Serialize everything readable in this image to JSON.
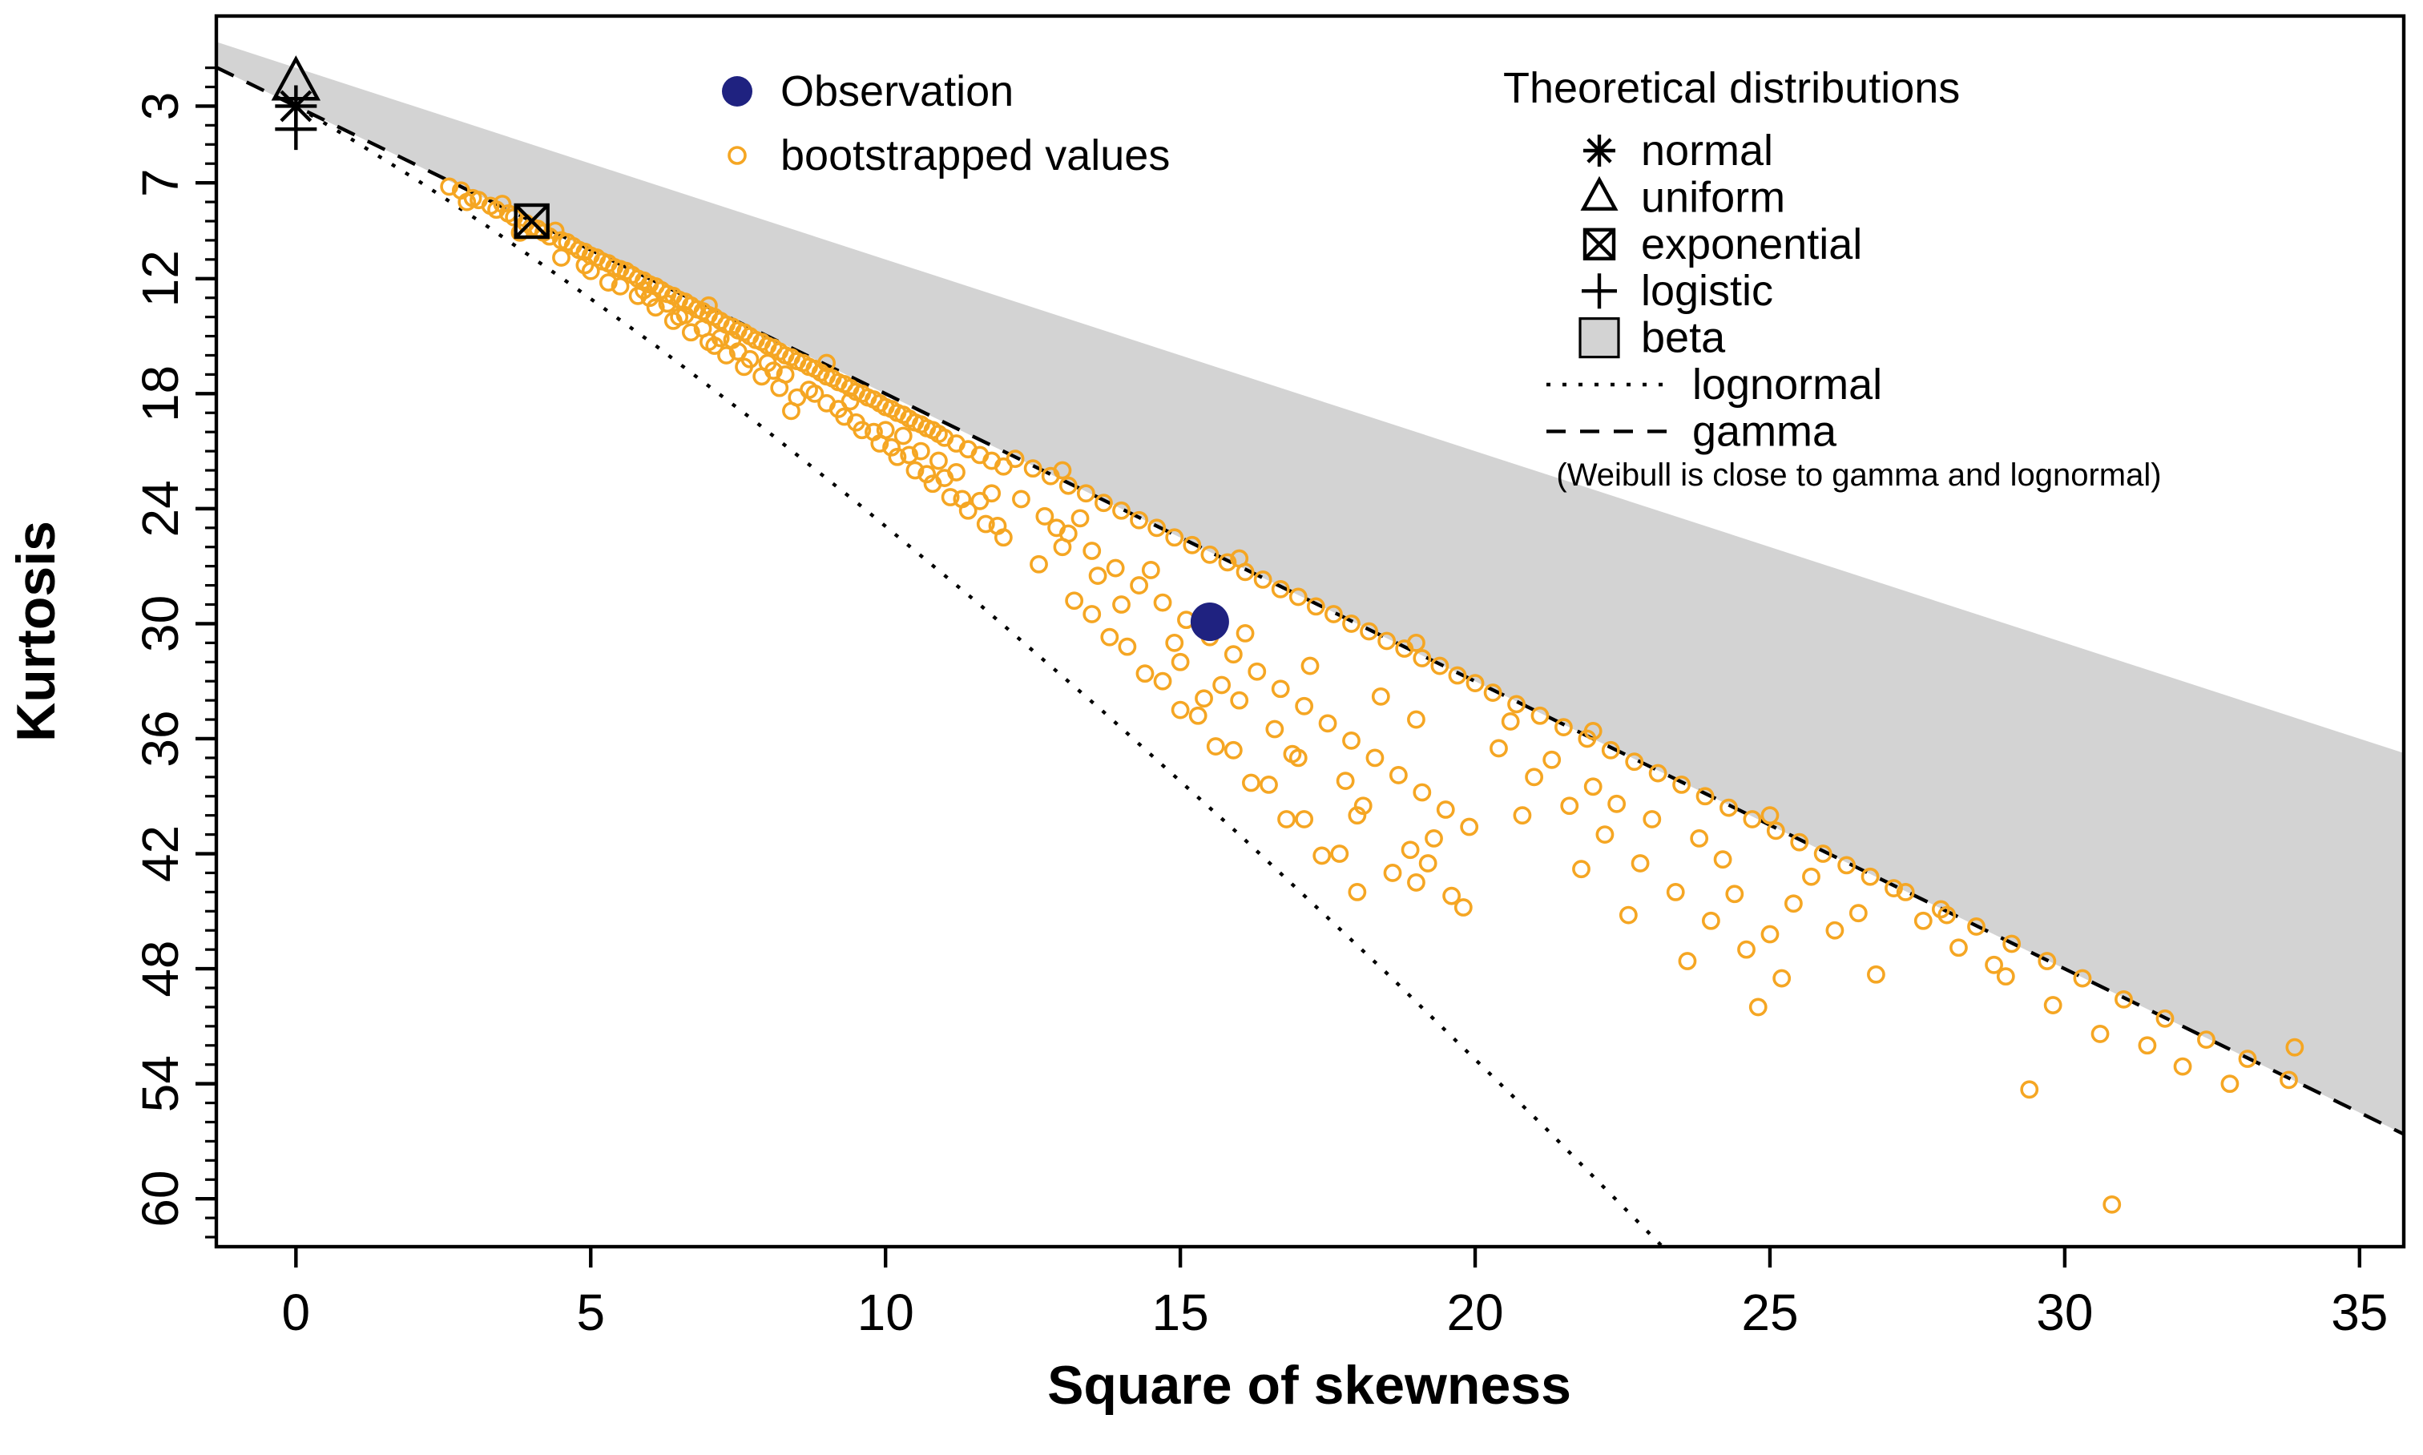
{
  "chart_data": {
    "type": "scatter",
    "title": "",
    "xlabel": "Square of skewness",
    "ylabel": "Kurtosis",
    "x_ticks": [
      0,
      5,
      10,
      15,
      20,
      25,
      30,
      35
    ],
    "y_ticks": [
      3,
      7,
      12,
      18,
      24,
      30,
      36,
      42,
      48,
      54,
      60
    ],
    "x_range": [
      -1.35,
      35.75
    ],
    "y_range": [
      -1.7,
      62.5
    ],
    "y_axis_reversed": true,
    "grid": false,
    "observation": {
      "x": 15.5,
      "y": 29.9
    },
    "theoretical_points": [
      {
        "name": "normal",
        "marker": "asterisk",
        "x": 0,
        "y": 3
      },
      {
        "name": "uniform",
        "marker": "triangle",
        "x": 0,
        "y": 1.8
      },
      {
        "name": "exponential",
        "marker": "crossed-square",
        "x": 4,
        "y": 9
      },
      {
        "name": "logistic",
        "marker": "plus",
        "x": 0,
        "y": 4.2
      }
    ],
    "beta_polygon": [
      [
        -1.35,
        -0.35
      ],
      [
        35.75,
        36.75
      ],
      [
        35.75,
        56.63
      ],
      [
        -1.35,
        0.98
      ]
    ],
    "gamma_line": [
      [
        -1.35,
        0.98
      ],
      [
        35.75,
        56.63
      ]
    ],
    "lognormal_curve": [
      [
        0,
        3
      ],
      [
        0.09,
        3.16
      ],
      [
        0.96,
        4.76
      ],
      [
        2.05,
        6.85
      ],
      [
        3.27,
        9.32
      ],
      [
        4.62,
        12.21
      ],
      [
        6.13,
        15.56
      ],
      [
        7.78,
        19.43
      ],
      [
        9.58,
        23.85
      ],
      [
        11.55,
        28.88
      ],
      [
        13.69,
        34.58
      ],
      [
        16.0,
        41.0
      ],
      [
        18.49,
        48.2
      ],
      [
        21.17,
        56.24
      ],
      [
        24.04,
        65.19
      ]
    ],
    "bootstrap_points": [
      [
        2.6,
        7.2
      ],
      [
        2.8,
        7.4
      ],
      [
        2.9,
        8.0
      ],
      [
        3.0,
        7.8
      ],
      [
        3.1,
        7.9
      ],
      [
        3.3,
        8.2
      ],
      [
        3.4,
        8.4
      ],
      [
        3.5,
        8.1
      ],
      [
        3.6,
        8.6
      ],
      [
        3.7,
        8.8
      ],
      [
        3.8,
        9.6
      ],
      [
        3.9,
        9.1
      ],
      [
        4.0,
        9.3
      ],
      [
        4.1,
        9.4
      ],
      [
        4.2,
        9.6
      ],
      [
        4.3,
        9.8
      ],
      [
        4.4,
        9.5
      ],
      [
        4.5,
        10.0
      ],
      [
        4.5,
        10.9
      ],
      [
        4.6,
        10.1
      ],
      [
        4.7,
        10.3
      ],
      [
        4.8,
        10.5
      ],
      [
        4.9,
        10.6
      ],
      [
        4.9,
        11.3
      ],
      [
        5.0,
        10.8
      ],
      [
        5.0,
        11.6
      ],
      [
        5.1,
        10.9
      ],
      [
        5.2,
        11.1
      ],
      [
        5.3,
        11.2
      ],
      [
        5.3,
        12.2
      ],
      [
        5.4,
        11.4
      ],
      [
        5.5,
        11.5
      ],
      [
        5.5,
        12.4
      ],
      [
        5.6,
        11.6
      ],
      [
        5.7,
        11.8
      ],
      [
        5.8,
        12.0
      ],
      [
        5.8,
        12.9
      ],
      [
        5.9,
        12.1
      ],
      [
        5.9,
        12.6
      ],
      [
        6.0,
        12.3
      ],
      [
        6.0,
        13.0
      ],
      [
        6.1,
        12.4
      ],
      [
        6.1,
        13.5
      ],
      [
        6.2,
        12.6
      ],
      [
        6.3,
        12.8
      ],
      [
        6.3,
        13.3
      ],
      [
        6.4,
        12.9
      ],
      [
        6.4,
        14.2
      ],
      [
        6.5,
        13.1
      ],
      [
        6.5,
        14.0
      ],
      [
        6.6,
        13.2
      ],
      [
        6.6,
        13.9
      ],
      [
        6.7,
        13.4
      ],
      [
        6.7,
        14.8
      ],
      [
        6.8,
        13.6
      ],
      [
        6.9,
        13.7
      ],
      [
        6.9,
        14.6
      ],
      [
        7.0,
        13.9
      ],
      [
        7.0,
        15.3
      ],
      [
        7.1,
        14.0
      ],
      [
        7.1,
        15.5
      ],
      [
        7.2,
        14.2
      ],
      [
        7.2,
        15.1
      ],
      [
        7.3,
        14.4
      ],
      [
        7.3,
        16.0
      ],
      [
        7.4,
        14.5
      ],
      [
        7.4,
        15.2
      ],
      [
        7.5,
        14.7
      ],
      [
        7.5,
        15.8
      ],
      [
        7.6,
        14.8
      ],
      [
        7.6,
        16.6
      ],
      [
        7.7,
        15.0
      ],
      [
        7.7,
        16.2
      ],
      [
        7.8,
        15.2
      ],
      [
        7.9,
        15.3
      ],
      [
        7.9,
        17.1
      ],
      [
        8.0,
        15.5
      ],
      [
        8.0,
        16.4
      ],
      [
        8.1,
        15.6
      ],
      [
        8.1,
        16.8
      ],
      [
        8.2,
        15.8
      ],
      [
        8.2,
        17.7
      ],
      [
        8.3,
        16.0
      ],
      [
        8.3,
        17.0
      ],
      [
        8.4,
        16.1
      ],
      [
        8.4,
        18.9
      ],
      [
        8.5,
        16.3
      ],
      [
        8.5,
        18.2
      ],
      [
        8.6,
        16.4
      ],
      [
        8.7,
        16.6
      ],
      [
        8.7,
        17.8
      ],
      [
        8.8,
        16.7
      ],
      [
        8.8,
        18.0
      ],
      [
        8.9,
        16.9
      ],
      [
        9.0,
        17.1
      ],
      [
        9.0,
        18.5
      ],
      [
        9.1,
        17.2
      ],
      [
        9.2,
        17.4
      ],
      [
        9.2,
        18.8
      ],
      [
        9.3,
        17.5
      ],
      [
        9.3,
        19.2
      ],
      [
        9.4,
        17.7
      ],
      [
        9.4,
        18.4
      ],
      [
        9.5,
        17.9
      ],
      [
        9.5,
        19.5
      ],
      [
        9.6,
        18.0
      ],
      [
        9.6,
        19.9
      ],
      [
        9.7,
        18.2
      ],
      [
        9.8,
        18.3
      ],
      [
        9.8,
        20.0
      ],
      [
        9.9,
        18.5
      ],
      [
        9.9,
        20.6
      ],
      [
        10.0,
        18.7
      ],
      [
        10.0,
        19.9
      ],
      [
        10.1,
        18.8
      ],
      [
        10.1,
        20.8
      ],
      [
        10.2,
        19.0
      ],
      [
        10.2,
        21.3
      ],
      [
        10.3,
        19.1
      ],
      [
        10.3,
        20.2
      ],
      [
        10.4,
        19.3
      ],
      [
        10.4,
        21.2
      ],
      [
        10.5,
        19.5
      ],
      [
        10.5,
        22.0
      ],
      [
        10.6,
        19.6
      ],
      [
        10.6,
        21.0
      ],
      [
        10.7,
        19.8
      ],
      [
        10.7,
        22.2
      ],
      [
        10.8,
        19.9
      ],
      [
        10.8,
        22.7
      ],
      [
        10.9,
        20.1
      ],
      [
        10.9,
        21.5
      ],
      [
        11.0,
        20.3
      ],
      [
        11.0,
        22.4
      ],
      [
        11.1,
        23.4
      ],
      [
        11.2,
        20.6
      ],
      [
        11.2,
        22.1
      ],
      [
        11.3,
        23.5
      ],
      [
        11.4,
        20.9
      ],
      [
        11.4,
        24.1
      ],
      [
        11.6,
        21.2
      ],
      [
        11.6,
        23.6
      ],
      [
        11.7,
        24.8
      ],
      [
        11.8,
        21.5
      ],
      [
        11.8,
        23.2
      ],
      [
        11.9,
        24.9
      ],
      [
        12.0,
        21.8
      ],
      [
        12.0,
        25.5
      ],
      [
        9.0,
        16.4
      ],
      [
        13.0,
        22.0
      ],
      [
        16.0,
        26.6
      ],
      [
        19.0,
        31.0
      ],
      [
        22.0,
        35.6
      ],
      [
        25.0,
        40.0
      ],
      [
        7.0,
        13.4
      ],
      [
        12.2,
        21.4
      ],
      [
        12.3,
        23.5
      ],
      [
        12.5,
        21.9
      ],
      [
        12.6,
        26.9
      ],
      [
        12.7,
        24.4
      ],
      [
        12.8,
        22.3
      ],
      [
        12.9,
        25.0
      ],
      [
        13.0,
        26.0
      ],
      [
        13.1,
        22.8
      ],
      [
        13.1,
        25.3
      ],
      [
        13.2,
        28.8
      ],
      [
        13.3,
        24.5
      ],
      [
        13.4,
        23.2
      ],
      [
        13.5,
        26.2
      ],
      [
        13.5,
        29.5
      ],
      [
        13.6,
        27.5
      ],
      [
        13.7,
        23.7
      ],
      [
        13.8,
        30.7
      ],
      [
        13.9,
        27.1
      ],
      [
        14.0,
        24.1
      ],
      [
        14.0,
        29.0
      ],
      [
        14.1,
        31.2
      ],
      [
        14.3,
        24.6
      ],
      [
        14.3,
        28.0
      ],
      [
        14.4,
        32.6
      ],
      [
        14.5,
        27.2
      ],
      [
        14.6,
        25.0
      ],
      [
        14.7,
        28.9
      ],
      [
        14.7,
        33.0
      ],
      [
        14.9,
        25.5
      ],
      [
        14.9,
        31.0
      ],
      [
        15.0,
        32.0
      ],
      [
        15.0,
        34.5
      ],
      [
        15.1,
        29.8
      ],
      [
        15.2,
        25.9
      ],
      [
        15.3,
        34.8
      ],
      [
        15.4,
        33.9
      ],
      [
        15.5,
        26.4
      ],
      [
        15.5,
        30.7
      ],
      [
        15.6,
        36.4
      ],
      [
        15.7,
        33.2
      ],
      [
        15.8,
        26.8
      ],
      [
        15.9,
        31.6
      ],
      [
        15.9,
        36.6
      ],
      [
        16.0,
        34.0
      ],
      [
        16.1,
        27.3
      ],
      [
        16.1,
        30.5
      ],
      [
        16.2,
        38.3
      ],
      [
        16.3,
        32.5
      ],
      [
        16.4,
        27.7
      ],
      [
        16.5,
        38.4
      ],
      [
        16.6,
        35.5
      ],
      [
        16.7,
        28.2
      ],
      [
        16.7,
        33.4
      ],
      [
        16.8,
        40.2
      ],
      [
        16.9,
        36.8
      ],
      [
        17.0,
        28.6
      ],
      [
        17.0,
        37.0
      ],
      [
        17.1,
        34.3
      ],
      [
        17.1,
        40.2
      ],
      [
        17.2,
        32.2
      ],
      [
        17.3,
        29.1
      ],
      [
        17.4,
        42.1
      ],
      [
        17.5,
        35.2
      ],
      [
        17.6,
        29.5
      ],
      [
        17.7,
        42.0
      ],
      [
        17.8,
        38.2
      ],
      [
        17.9,
        30.0
      ],
      [
        17.9,
        36.1
      ],
      [
        18.0,
        40.0
      ],
      [
        18.0,
        44.0
      ],
      [
        18.1,
        39.5
      ],
      [
        18.2,
        30.4
      ],
      [
        18.3,
        37.0
      ],
      [
        18.4,
        33.8
      ],
      [
        18.5,
        30.9
      ],
      [
        18.6,
        43.0
      ],
      [
        18.7,
        37.9
      ],
      [
        18.8,
        31.3
      ],
      [
        18.9,
        41.8
      ],
      [
        19.0,
        35.0
      ],
      [
        19.0,
        43.5
      ],
      [
        19.1,
        31.8
      ],
      [
        19.1,
        38.8
      ],
      [
        19.2,
        42.5
      ],
      [
        19.3,
        41.2
      ],
      [
        19.4,
        32.2
      ],
      [
        19.5,
        39.7
      ],
      [
        19.6,
        44.2
      ],
      [
        19.7,
        32.7
      ],
      [
        19.8,
        44.8
      ],
      [
        19.9,
        40.6
      ],
      [
        20.0,
        33.1
      ],
      [
        20.3,
        33.6
      ],
      [
        20.4,
        36.5
      ],
      [
        20.6,
        35.1
      ],
      [
        20.7,
        34.2
      ],
      [
        20.8,
        40.0
      ],
      [
        21.0,
        38.0
      ],
      [
        21.1,
        34.8
      ],
      [
        21.3,
        37.1
      ],
      [
        21.5,
        35.4
      ],
      [
        21.6,
        39.5
      ],
      [
        21.8,
        42.8
      ],
      [
        21.9,
        36.0
      ],
      [
        22.0,
        38.5
      ],
      [
        22.2,
        41.0
      ],
      [
        22.3,
        36.6
      ],
      [
        22.4,
        39.4
      ],
      [
        22.6,
        45.2
      ],
      [
        22.7,
        37.2
      ],
      [
        22.8,
        42.5
      ],
      [
        23.0,
        40.2
      ],
      [
        23.1,
        37.8
      ],
      [
        23.4,
        44.0
      ],
      [
        23.5,
        38.4
      ],
      [
        23.6,
        47.6
      ],
      [
        23.8,
        41.2
      ],
      [
        23.9,
        39.0
      ],
      [
        24.0,
        45.5
      ],
      [
        24.2,
        42.3
      ],
      [
        24.3,
        39.6
      ],
      [
        24.4,
        44.1
      ],
      [
        24.6,
        47.0
      ],
      [
        24.7,
        40.2
      ],
      [
        24.8,
        50.0
      ],
      [
        25.0,
        46.2
      ],
      [
        25.1,
        40.8
      ],
      [
        25.2,
        48.5
      ],
      [
        25.4,
        44.6
      ],
      [
        25.5,
        41.4
      ],
      [
        25.7,
        43.2
      ],
      [
        25.9,
        42.0
      ],
      [
        26.1,
        46.0
      ],
      [
        26.3,
        42.6
      ],
      [
        26.5,
        45.1
      ],
      [
        26.7,
        43.2
      ],
      [
        26.8,
        48.3
      ],
      [
        27.1,
        43.8
      ],
      [
        27.3,
        44.0
      ],
      [
        27.6,
        45.5
      ],
      [
        27.9,
        44.9
      ],
      [
        28.0,
        45.2
      ],
      [
        28.2,
        46.9
      ],
      [
        28.5,
        45.8
      ],
      [
        28.8,
        47.8
      ],
      [
        29.0,
        48.4
      ],
      [
        29.1,
        46.7
      ],
      [
        29.4,
        54.3
      ],
      [
        29.7,
        47.6
      ],
      [
        29.8,
        49.9
      ],
      [
        30.3,
        48.5
      ],
      [
        30.6,
        51.4
      ],
      [
        30.8,
        60.3
      ],
      [
        31.0,
        49.6
      ],
      [
        31.4,
        52.0
      ],
      [
        31.7,
        50.6
      ],
      [
        32.0,
        53.1
      ],
      [
        32.4,
        51.7
      ],
      [
        32.8,
        54.0
      ],
      [
        33.1,
        52.7
      ],
      [
        33.8,
        53.8
      ],
      [
        33.9,
        52.1
      ]
    ]
  },
  "legend_observation": {
    "items": [
      {
        "label": "Observation",
        "marker": "filled-circle"
      },
      {
        "label": "bootstrapped values",
        "marker": "open-circle"
      }
    ]
  },
  "legend_theoretical": {
    "title": "Theoretical distributions",
    "items": [
      {
        "label": "normal",
        "marker": "asterisk"
      },
      {
        "label": "uniform",
        "marker": "triangle"
      },
      {
        "label": "exponential",
        "marker": "crossed-square"
      },
      {
        "label": "logistic",
        "marker": "plus"
      },
      {
        "label": "beta",
        "marker": "gray-square"
      },
      {
        "label": "lognormal",
        "marker": "dotted-line"
      },
      {
        "label": "gamma",
        "marker": "dashed-line"
      }
    ],
    "note": "(Weibull is close to gamma and lognormal)"
  },
  "colors": {
    "observation": "#1F2280",
    "bootstrap": "#F5A623",
    "beta_fill": "#D3D3D3",
    "line": "#000000",
    "background": "#FFFFFF"
  }
}
